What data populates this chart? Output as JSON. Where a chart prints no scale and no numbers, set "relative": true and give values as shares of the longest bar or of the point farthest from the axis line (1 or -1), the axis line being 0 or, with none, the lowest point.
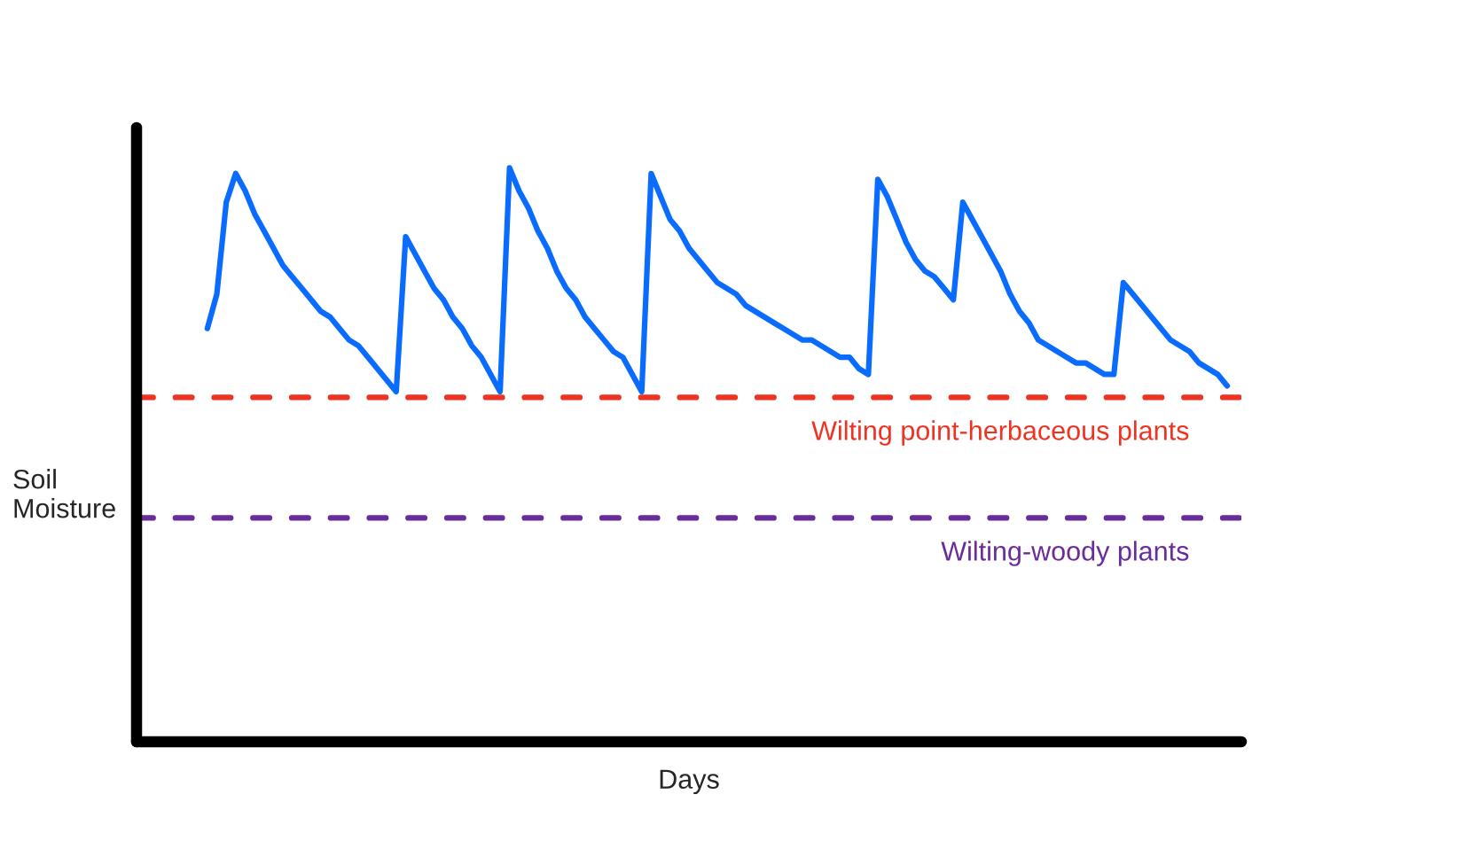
{
  "chart_data": {
    "type": "line",
    "relative": true,
    "xlabel": "Days",
    "ylabel": "Soil\nMoisture",
    "line_style": "solid",
    "marker": "none",
    "categories": [
      null,
      null,
      null,
      null,
      null,
      null,
      null,
      null,
      null,
      null,
      null,
      null,
      null,
      null,
      null,
      null,
      null,
      null,
      null,
      null,
      null,
      null,
      null,
      null,
      null,
      null,
      null,
      null,
      null,
      null,
      null,
      null,
      null,
      null,
      null,
      null,
      null,
      null,
      null,
      null,
      null,
      null,
      null,
      null,
      null,
      null,
      null,
      null,
      null,
      null,
      null,
      null,
      null,
      null,
      null,
      null,
      null,
      null,
      null,
      null,
      null,
      null,
      null,
      null,
      null,
      null,
      null,
      null,
      null,
      null,
      null,
      null,
      null,
      null,
      null,
      null,
      null,
      null,
      null,
      null,
      null,
      null,
      null,
      null,
      null,
      null,
      null,
      null,
      null,
      null,
      null,
      null,
      null,
      null,
      null,
      null,
      null,
      null,
      null,
      null,
      null,
      null,
      null,
      null,
      null,
      null,
      null,
      null,
      null
    ],
    "series": [
      {
        "color": "#0a6cff",
        "values": [
          0.72,
          0.78,
          0.94,
          0.99,
          0.96,
          0.92,
          0.89,
          0.86,
          0.83,
          0.81,
          0.79,
          0.77,
          0.75,
          0.74,
          0.72,
          0.7,
          0.69,
          0.67,
          0.65,
          0.63,
          0.61,
          0.88,
          0.85,
          0.82,
          0.79,
          0.77,
          0.74,
          0.72,
          0.69,
          0.67,
          0.64,
          0.61,
          1.0,
          0.96,
          0.93,
          0.89,
          0.86,
          0.82,
          0.79,
          0.77,
          0.74,
          0.72,
          0.7,
          0.68,
          0.67,
          0.64,
          0.61,
          0.99,
          0.95,
          0.91,
          0.89,
          0.86,
          0.84,
          0.82,
          0.8,
          0.79,
          0.78,
          0.76,
          0.75,
          0.74,
          0.73,
          0.72,
          0.71,
          0.7,
          0.7,
          0.69,
          0.68,
          0.67,
          0.67,
          0.65,
          0.64,
          0.98,
          0.95,
          0.91,
          0.87,
          0.84,
          0.82,
          0.81,
          0.79,
          0.77,
          0.94,
          0.91,
          0.88,
          0.85,
          0.82,
          0.78,
          0.75,
          0.73,
          0.7,
          0.69,
          0.68,
          0.67,
          0.66,
          0.66,
          0.65,
          0.64,
          0.64,
          0.8,
          0.78,
          0.76,
          0.74,
          0.72,
          0.7,
          0.69,
          0.68,
          0.66,
          0.65,
          0.64,
          0.62
        ]
      }
    ],
    "ref_lines": [
      {
        "axis": "y",
        "value": 0.6,
        "label": "Wilting point-herbaceous plants",
        "color": "#ee3323",
        "line_style": "dashed"
      },
      {
        "axis": "y",
        "value": 0.39,
        "label": "Wilting-woody plants",
        "color": "#6a2c9a",
        "line_style": "dashed"
      }
    ]
  }
}
